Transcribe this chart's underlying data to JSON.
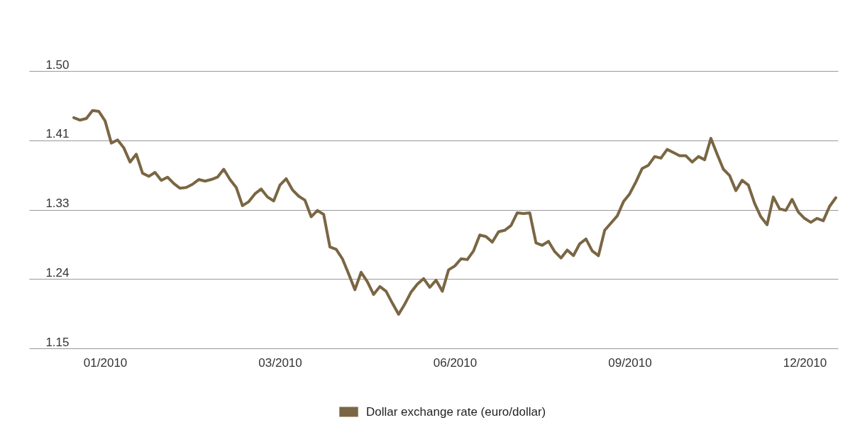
{
  "chart_data": {
    "type": "line",
    "categories": [
      null,
      null,
      null,
      null,
      null,
      "01/2010",
      null,
      null,
      null,
      null,
      null,
      null,
      null,
      null,
      null,
      null,
      null,
      null,
      null,
      null,
      null,
      null,
      null,
      null,
      null,
      null,
      null,
      null,
      null,
      null,
      null,
      null,
      null,
      "03/2010",
      null,
      null,
      null,
      null,
      null,
      null,
      null,
      null,
      null,
      null,
      null,
      null,
      null,
      null,
      null,
      null,
      null,
      null,
      null,
      null,
      null,
      null,
      null,
      null,
      null,
      null,
      null,
      "06/2010",
      null,
      null,
      null,
      null,
      null,
      null,
      null,
      null,
      null,
      null,
      null,
      null,
      null,
      null,
      null,
      null,
      null,
      null,
      null,
      null,
      null,
      null,
      null,
      null,
      null,
      null,
      null,
      "09/2010",
      null,
      null,
      null,
      null,
      null,
      null,
      null,
      null,
      null,
      null,
      null,
      null,
      null,
      null,
      null,
      null,
      null,
      null,
      null,
      null,
      null,
      null,
      null,
      null,
      null,
      null,
      null,
      "12/2010",
      null,
      null,
      null,
      null,
      null
    ],
    "series": [
      {
        "name": "Dollar exchange rate (euro/dollar)",
        "color": "#7a6643",
        "values": [
          1.441,
          1.438,
          1.44,
          1.45,
          1.449,
          1.437,
          1.409,
          1.413,
          1.403,
          1.385,
          1.395,
          1.371,
          1.367,
          1.372,
          1.362,
          1.366,
          1.358,
          1.352,
          1.353,
          1.357,
          1.363,
          1.361,
          1.363,
          1.366,
          1.376,
          1.363,
          1.353,
          1.33,
          1.335,
          1.345,
          1.351,
          1.341,
          1.336,
          1.356,
          1.364,
          1.35,
          1.342,
          1.337,
          1.316,
          1.324,
          1.319,
          1.278,
          1.275,
          1.263,
          1.244,
          1.224,
          1.246,
          1.234,
          1.218,
          1.228,
          1.222,
          1.207,
          1.193,
          1.206,
          1.221,
          1.231,
          1.238,
          1.227,
          1.236,
          1.222,
          1.249,
          1.254,
          1.263,
          1.262,
          1.273,
          1.293,
          1.291,
          1.284,
          1.297,
          1.299,
          1.305,
          1.321,
          1.32,
          1.321,
          1.283,
          1.28,
          1.285,
          1.272,
          1.264,
          1.274,
          1.267,
          1.282,
          1.288,
          1.273,
          1.267,
          1.299,
          1.308,
          1.317,
          1.335,
          1.345,
          1.36,
          1.377,
          1.381,
          1.392,
          1.39,
          1.401,
          1.397,
          1.393,
          1.393,
          1.385,
          1.392,
          1.388,
          1.415,
          1.395,
          1.376,
          1.368,
          1.349,
          1.362,
          1.356,
          1.333,
          1.316,
          1.306,
          1.341,
          1.326,
          1.324,
          1.338,
          1.322,
          1.314,
          1.309,
          1.314,
          1.311,
          1.329,
          1.34
        ]
      }
    ],
    "ylim": [
      1.15,
      1.5
    ],
    "yticks": [
      1.15,
      {
        "value": 1.2375,
        "label": "1.24"
      },
      {
        "value": 1.325,
        "label": "1.33"
      },
      {
        "value": 1.4125,
        "label": "1.41"
      },
      {
        "value": 1.5,
        "label": "1.50"
      }
    ],
    "grid": "y",
    "legend": "bottom"
  }
}
